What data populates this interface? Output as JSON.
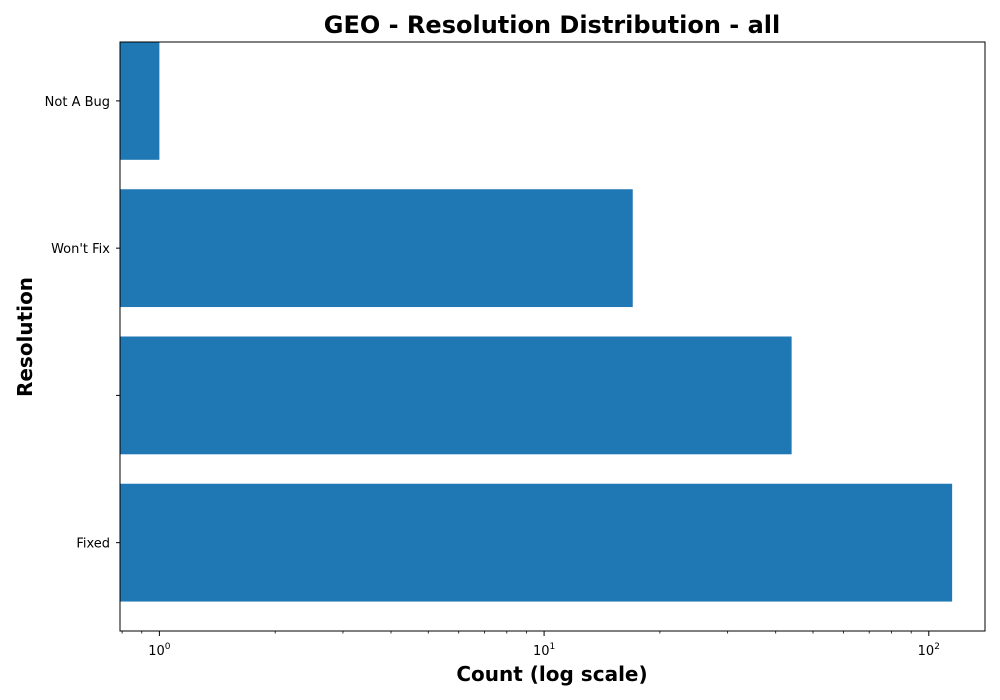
{
  "chart_data": {
    "type": "bar",
    "orientation": "horizontal",
    "title": "GEO - Resolution Distribution - all",
    "xlabel": "Count (log scale)",
    "ylabel": "Resolution",
    "x_scale": "log",
    "xlim": [
      0.79,
      140
    ],
    "x_ticks": [
      {
        "value": 1,
        "base": "10",
        "exp": "0"
      },
      {
        "value": 10,
        "base": "10",
        "exp": "1"
      },
      {
        "value": 100,
        "base": "10",
        "exp": "2"
      }
    ],
    "categories": [
      "Fixed",
      "",
      "Won't Fix",
      "Not A Bug"
    ],
    "values": [
      115,
      44,
      17,
      1
    ],
    "bar_color": "#1f77b4",
    "grid": false,
    "legend": "none"
  }
}
